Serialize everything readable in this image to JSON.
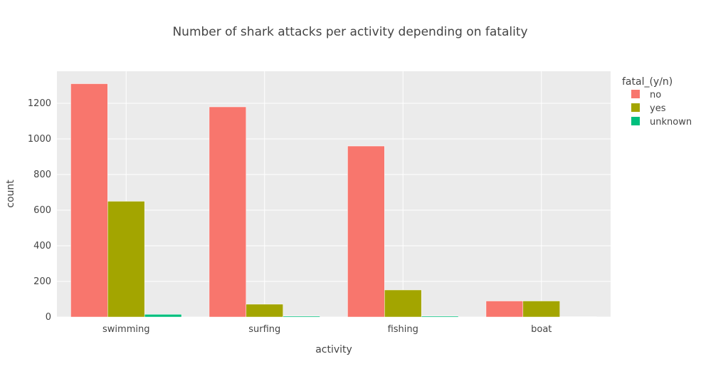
{
  "chart_data": {
    "type": "bar",
    "title": "Number of shark attacks per activity depending on fatality",
    "xlabel": "activity",
    "ylabel": "count",
    "categories": [
      "swimming",
      "surfing",
      "fishing",
      "boat"
    ],
    "series": [
      {
        "name": "no",
        "color": "#F8766D",
        "values": [
          1310,
          1180,
          960,
          90
        ]
      },
      {
        "name": "yes",
        "color": "#A3A500",
        "values": [
          650,
          72,
          152,
          90
        ]
      },
      {
        "name": "unknown",
        "color": "#00BF7D",
        "values": [
          15,
          5,
          5,
          2
        ]
      }
    ],
    "ylim": [
      0,
      1380
    ],
    "yticks": [
      0,
      200,
      400,
      600,
      800,
      1000,
      1200
    ],
    "legend": {
      "title": "fatal_(y/n)",
      "position": "top-right"
    },
    "grid": true,
    "plot_background": "#EBEBEB"
  }
}
